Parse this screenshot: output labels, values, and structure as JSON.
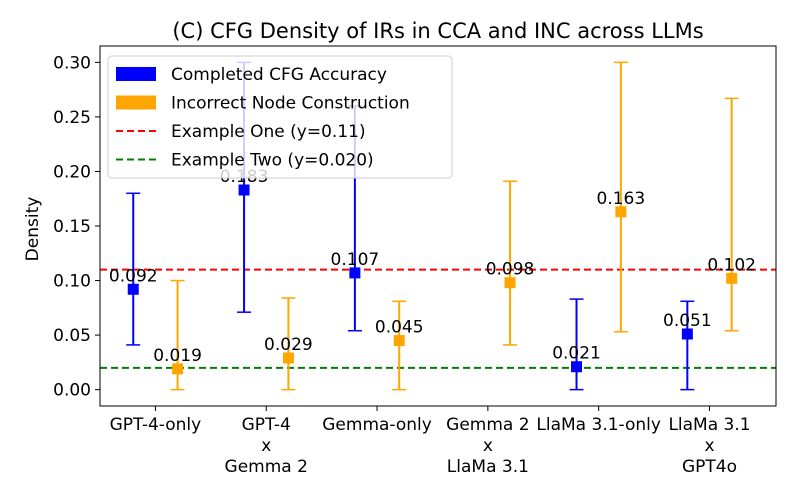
{
  "chart_data": {
    "type": "scatter",
    "title": "(C) CFG Density of IRs in CCA and INC across LLMs",
    "xlabel": "",
    "ylabel": "Density",
    "ylim": [
      -0.015,
      0.315
    ],
    "yticks": [
      "0.00",
      "0.05",
      "0.10",
      "0.15",
      "0.20",
      "0.25",
      "0.30"
    ],
    "categories": [
      [
        "GPT-4-only"
      ],
      [
        "GPT-4",
        "x",
        "Gemma 2"
      ],
      [
        "Gemma-only"
      ],
      [
        "Gemma 2",
        "x",
        "LlaMa 3.1"
      ],
      [
        "LlaMa 3.1-only"
      ],
      [
        "LlaMa 3.1",
        "x",
        "GPT4o"
      ]
    ],
    "series": [
      {
        "name": "Completed CFG Accuracy",
        "color": "#0000ff",
        "values": [
          0.092,
          0.183,
          0.107,
          null,
          0.021,
          0.051
        ],
        "labels": [
          "0.092",
          "0.183",
          "0.107",
          "",
          "0.021",
          "0.051"
        ],
        "err_low": [
          0.041,
          0.071,
          0.054,
          null,
          0.0,
          0.0
        ],
        "err_high": [
          0.18,
          0.3,
          0.26,
          null,
          0.083,
          0.081
        ]
      },
      {
        "name": "Incorrect Node Construction",
        "color": "#ffa500",
        "values": [
          0.019,
          0.029,
          0.045,
          0.098,
          0.163,
          0.102
        ],
        "labels": [
          "0.019",
          "0.029",
          "0.045",
          "0.098",
          "0.163",
          "0.102"
        ],
        "err_low": [
          0.0,
          0.0,
          0.0,
          0.041,
          0.053,
          0.054
        ],
        "err_high": [
          0.1,
          0.084,
          0.081,
          0.191,
          0.3,
          0.267
        ]
      }
    ],
    "hlines": [
      {
        "name": "Example One (y=0.11)",
        "y": 0.11,
        "color": "#ff0000"
      },
      {
        "name": "Example Two (y=0.020)",
        "y": 0.02,
        "color": "#008000"
      }
    ],
    "grid": false,
    "legend_position": "top-left"
  }
}
